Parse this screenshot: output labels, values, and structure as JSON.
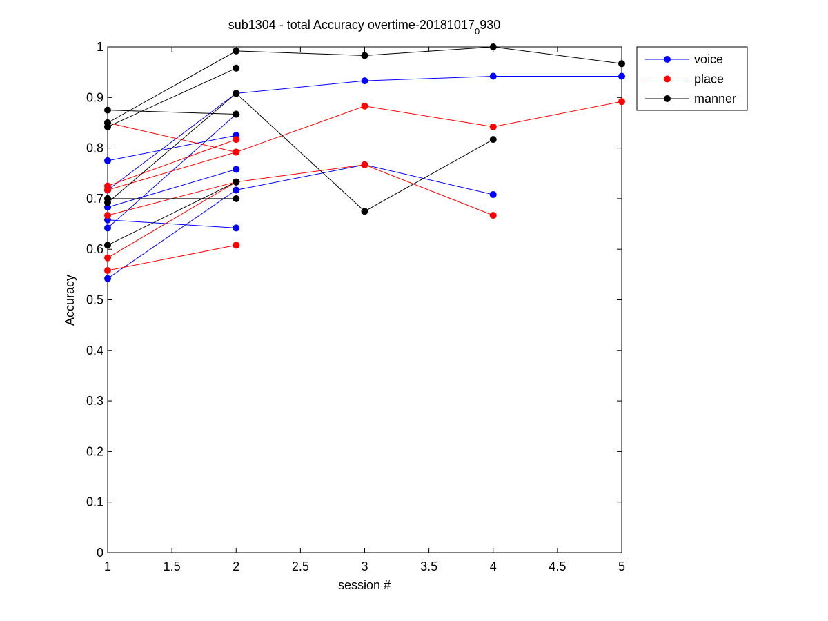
{
  "chart_data": {
    "type": "line",
    "title_main": "sub1304 - total Accuracy overtime-20181017",
    "title_subscript": "0",
    "title_tail": "930",
    "xlabel": "session #",
    "ylabel": "Accuracy",
    "xlim": [
      1,
      5
    ],
    "ylim": [
      0,
      1
    ],
    "xticks": [
      "1",
      "1.5",
      "2",
      "2.5",
      "3",
      "3.5",
      "4",
      "4.5",
      "5"
    ],
    "yticks": [
      "0",
      "0.1",
      "0.2",
      "0.3",
      "0.4",
      "0.5",
      "0.6",
      "0.7",
      "0.8",
      "0.9",
      "1"
    ],
    "grid": false,
    "legend_position": "top-right",
    "legend": [
      {
        "name": "voice",
        "color": "#0000ff"
      },
      {
        "name": "place",
        "color": "#ff0000"
      },
      {
        "name": "manner",
        "color": "#000000"
      }
    ],
    "series": [
      {
        "group": "voice",
        "color": "#0000ff",
        "x": [
          1,
          2
        ],
        "y": [
          0.775,
          0.825
        ]
      },
      {
        "group": "voice",
        "color": "#0000ff",
        "x": [
          1,
          2
        ],
        "y": [
          0.683,
          0.758
        ]
      },
      {
        "group": "voice",
        "color": "#0000ff",
        "x": [
          1,
          2
        ],
        "y": [
          0.658,
          0.642
        ]
      },
      {
        "group": "voice",
        "color": "#0000ff",
        "x": [
          1,
          2
        ],
        "y": [
          0.642,
          0.867
        ]
      },
      {
        "group": "voice",
        "color": "#0000ff",
        "x": [
          1,
          2,
          3,
          4,
          5
        ],
        "y": [
          0.717,
          0.908,
          0.933,
          0.942,
          0.942
        ]
      },
      {
        "group": "voice",
        "color": "#0000ff",
        "x": [
          1,
          2,
          3,
          4
        ],
        "y": [
          0.542,
          0.717,
          0.767,
          0.708
        ]
      },
      {
        "group": "place",
        "color": "#ff0000",
        "x": [
          1,
          2
        ],
        "y": [
          0.85,
          0.792
        ]
      },
      {
        "group": "place",
        "color": "#ff0000",
        "x": [
          1,
          2
        ],
        "y": [
          0.725,
          0.817
        ]
      },
      {
        "group": "place",
        "color": "#ff0000",
        "x": [
          1,
          2
        ],
        "y": [
          0.667,
          0.733
        ]
      },
      {
        "group": "place",
        "color": "#ff0000",
        "x": [
          1,
          2
        ],
        "y": [
          0.558,
          0.608
        ]
      },
      {
        "group": "place",
        "color": "#ff0000",
        "x": [
          1,
          2,
          3,
          4,
          5
        ],
        "y": [
          0.717,
          0.792,
          0.883,
          0.842,
          0.892
        ]
      },
      {
        "group": "place",
        "color": "#ff0000",
        "x": [
          1,
          2,
          3,
          4
        ],
        "y": [
          0.583,
          0.733,
          0.767,
          0.667
        ]
      },
      {
        "group": "manner",
        "color": "#000000",
        "x": [
          1,
          2
        ],
        "y": [
          0.875,
          0.867
        ]
      },
      {
        "group": "manner",
        "color": "#000000",
        "x": [
          1,
          2
        ],
        "y": [
          0.842,
          0.958
        ]
      },
      {
        "group": "manner",
        "color": "#000000",
        "x": [
          1,
          2
        ],
        "y": [
          0.7,
          0.7
        ]
      },
      {
        "group": "manner",
        "color": "#000000",
        "x": [
          1,
          2
        ],
        "y": [
          0.608,
          0.733
        ]
      },
      {
        "group": "manner",
        "color": "#000000",
        "x": [
          1,
          2,
          3,
          4,
          5
        ],
        "y": [
          0.85,
          0.992,
          0.983,
          1.0,
          0.967
        ]
      },
      {
        "group": "manner",
        "color": "#000000",
        "x": [
          1,
          2,
          3,
          4
        ],
        "y": [
          0.692,
          0.908,
          0.675,
          0.817
        ]
      }
    ]
  }
}
